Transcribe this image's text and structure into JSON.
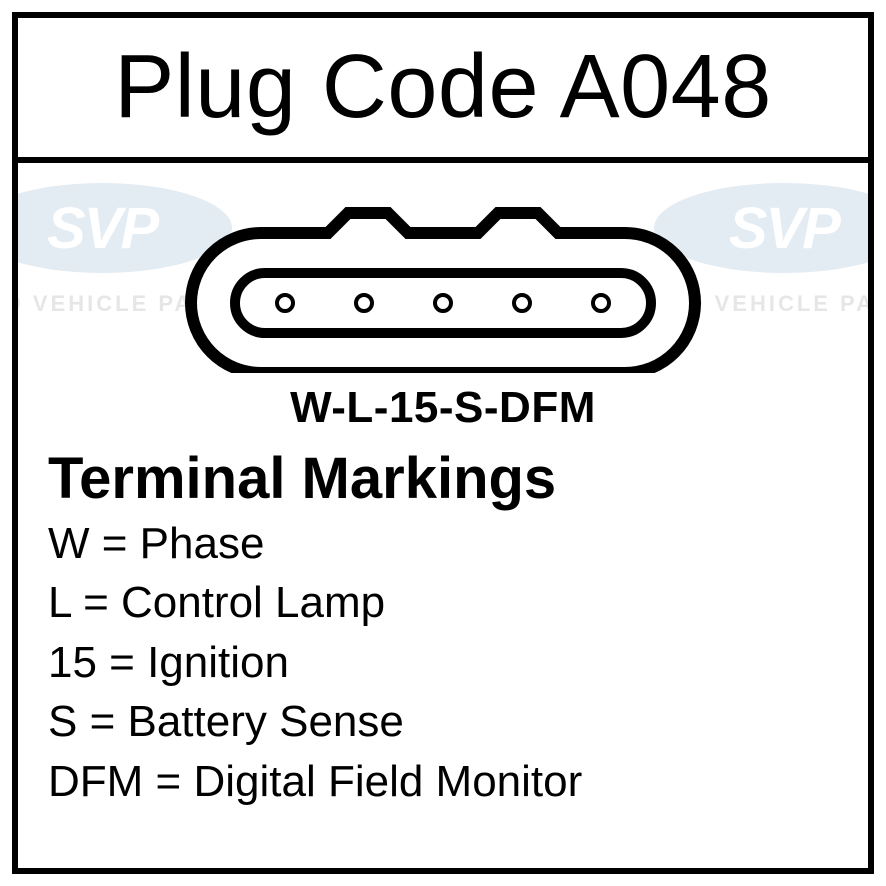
{
  "title": "Plug Code A048",
  "watermark": {
    "logo_text": "SVP",
    "subtitle": "SINO VEHICLE PARTS",
    "ellipse_color": "#4a7fb5",
    "subtitle_color": "#5b5b5b",
    "opacity": 0.15
  },
  "connector": {
    "type": "plug-outline",
    "pin_count": 5,
    "outer_stroke": "#000000",
    "outer_stroke_width": 12,
    "inner_stroke_width": 10,
    "pin_radius": 8,
    "pin_fill": "#ffffff",
    "pin_stroke_width": 4,
    "background": "#ffffff",
    "tab_height": 24
  },
  "pin_label": "W-L-15-S-DFM",
  "markings": {
    "title": "Terminal Markings",
    "items": [
      {
        "code": "W",
        "desc": "Phase"
      },
      {
        "code": "L",
        "desc": "Control Lamp"
      },
      {
        "code": "15",
        "desc": "Ignition"
      },
      {
        "code": "S",
        "desc": "Battery Sense"
      },
      {
        "code": "DFM",
        "desc": "Digital Field Monitor"
      }
    ]
  },
  "colors": {
    "border": "#000000",
    "background": "#ffffff",
    "text": "#000000"
  },
  "typography": {
    "title_fontsize": 90,
    "pin_label_fontsize": 44,
    "markings_title_fontsize": 58,
    "marking_line_fontsize": 44
  }
}
